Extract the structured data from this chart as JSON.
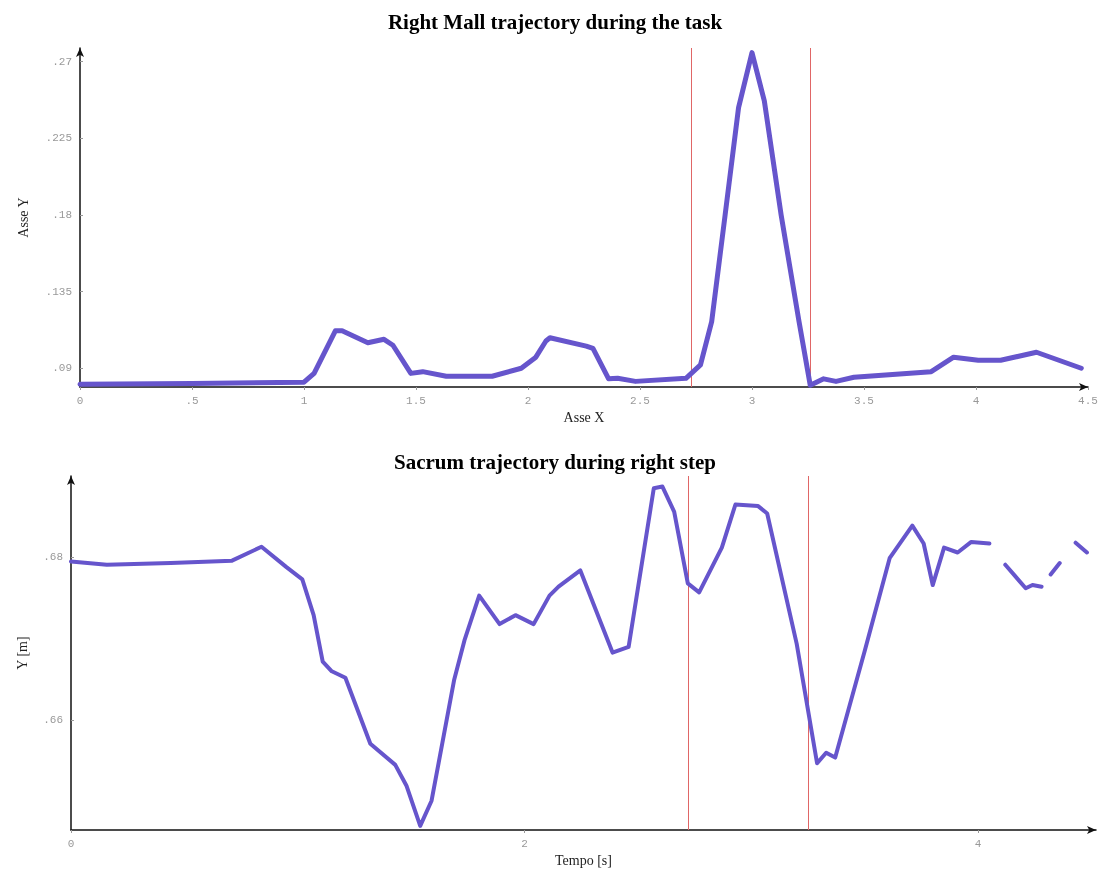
{
  "chart_data": [
    {
      "type": "line",
      "title": "Right Mall trajectory during the task",
      "xlabel": "Asse X",
      "ylabel": "Asse Y",
      "grid": false,
      "marker": "none",
      "line_style": "solid",
      "xlim": [
        0,
        4.5
      ],
      "xticks": [
        0,
        {
          "value": 0.5,
          "label": ".5"
        },
        1,
        1.5,
        2,
        2.5,
        3,
        3.5,
        4,
        4.5
      ],
      "ylim": [
        0.079,
        0.278
      ],
      "yticks": [
        {
          "value": 0.09,
          "label": ".09"
        },
        {
          "value": 0.135,
          "label": ".135"
        },
        {
          "value": 0.18,
          "label": ".18"
        },
        {
          "value": 0.225,
          "label": ".225"
        },
        {
          "value": 0.27,
          "label": ".27"
        }
      ],
      "ref_lines": [
        {
          "axis": "x",
          "value": 2.73,
          "color": "#e06666"
        },
        {
          "axis": "x",
          "value": 3.26,
          "color": "#e06666"
        }
      ],
      "series": [
        {
          "color": "#6655cc",
          "x": [
            0,
            0.5,
            1,
            1.045,
            1.14,
            1.17,
            1.285,
            1.357,
            1.397,
            1.477,
            1.53,
            1.635,
            1.84,
            1.97,
            2.035,
            2.08,
            2.098,
            2.26,
            2.29,
            2.36,
            2.4,
            2.48,
            2.705,
            2.77,
            2.82,
            2.88,
            2.94,
            3.0,
            3.055,
            3.13,
            3.21,
            3.26,
            3.32,
            3.375,
            3.455,
            3.8,
            3.9,
            4.01,
            4.11,
            4.27,
            4.47
          ],
          "values": [
            0.0806,
            0.081,
            0.0818,
            0.087,
            0.112,
            0.112,
            0.105,
            0.107,
            0.1035,
            0.087,
            0.088,
            0.0853,
            0.0853,
            0.09,
            0.0965,
            0.106,
            0.1079,
            0.103,
            0.1017,
            0.0838,
            0.0841,
            0.0823,
            0.0841,
            0.092,
            0.1174,
            0.18,
            0.243,
            0.2753,
            0.247,
            0.18,
            0.1174,
            0.08,
            0.0838,
            0.0823,
            0.0847,
            0.088,
            0.0965,
            0.0947,
            0.0947,
            0.0994,
            0.09
          ]
        }
      ]
    },
    {
      "type": "line",
      "title": "Sacrum trajectory during right step",
      "xlabel": "Tempo [s]",
      "ylabel": "Y [m]",
      "grid": false,
      "marker": "none",
      "line_style": "solid",
      "xlim": [
        0,
        4.52
      ],
      "xticks": [
        0,
        2,
        4
      ],
      "ylim": [
        0.6465,
        0.69
      ],
      "yticks": [
        {
          "value": 0.66,
          "label": ".66"
        },
        {
          "value": 0.68,
          "label": ".68"
        }
      ],
      "ref_lines": [
        {
          "axis": "x",
          "value": 2.72,
          "color": "#e06666"
        },
        {
          "axis": "x",
          "value": 3.25,
          "color": "#e06666"
        }
      ],
      "series": [
        {
          "color": "#6655cc",
          "x": [
            0,
            0.158,
            0.44,
            0.71,
            0.84,
            0.95,
            1.02,
            1.07,
            1.11,
            1.15,
            1.21,
            1.32,
            1.43,
            1.48,
            1.54,
            1.59,
            1.69,
            1.735,
            1.8,
            1.89,
            1.96,
            2.04,
            2.11,
            2.15,
            2.246,
            2.388,
            2.459,
            2.57,
            2.608,
            2.66,
            2.72,
            2.77,
            2.87,
            2.93,
            3.03,
            3.07,
            3.2,
            3.29,
            3.33,
            3.37,
            3.5,
            3.61,
            3.71,
            3.76,
            3.8,
            3.85,
            3.91,
            3.97,
            4.05,
            4.09,
            4.12,
            4.21,
            4.24,
            4.28,
            4.3,
            4.32,
            4.36,
            4.4,
            4.43,
            4.48
          ],
          "values": [
            0.6795,
            0.6791,
            0.6793,
            0.6796,
            0.6813,
            0.6788,
            0.6773,
            0.6729,
            0.6672,
            0.666,
            0.6652,
            0.6571,
            0.6545,
            0.6519,
            0.647,
            0.6501,
            0.665,
            0.6698,
            0.6753,
            0.6718,
            0.6729,
            0.6718,
            0.6753,
            0.6764,
            0.6784,
            0.6683,
            0.669,
            0.6885,
            0.6887,
            0.6856,
            0.6768,
            0.6757,
            0.6812,
            0.6865,
            0.6863,
            0.6854,
            0.6694,
            0.6547,
            0.656,
            0.6554,
            0.6685,
            0.6799,
            0.6839,
            0.6817,
            0.6766,
            0.6812,
            0.6806,
            0.6819,
            0.6817,
            null,
            0.6791,
            0.6762,
            0.6766,
            0.6764,
            null,
            0.6779,
            0.6793,
            null,
            0.6818,
            0.6806
          ]
        }
      ]
    }
  ]
}
